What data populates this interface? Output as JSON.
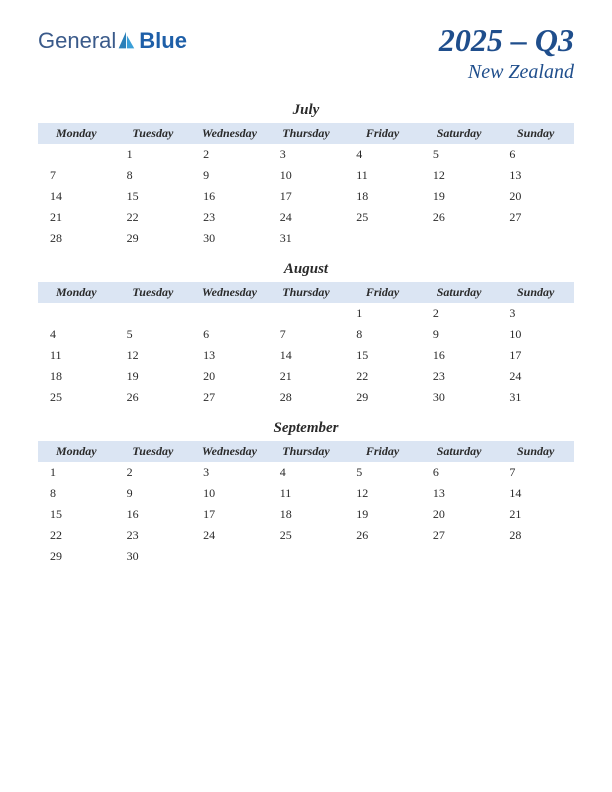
{
  "logo": {
    "text1": "General",
    "text2": "Blue",
    "color_general": "#3a5a8a",
    "color_blue": "#1e5fa8",
    "icon_color": "#2a7fb8"
  },
  "title": {
    "quarter": "2025 – Q3",
    "location": "New Zealand",
    "color": "#1f4e8c"
  },
  "day_headers": [
    "Monday",
    "Tuesday",
    "Wednesday",
    "Thursday",
    "Friday",
    "Saturday",
    "Sunday"
  ],
  "header_bg": "#dbe5f3",
  "months": [
    {
      "name": "July",
      "weeks": [
        [
          "",
          "1",
          "2",
          "3",
          "4",
          "5",
          "6"
        ],
        [
          "7",
          "8",
          "9",
          "10",
          "11",
          "12",
          "13"
        ],
        [
          "14",
          "15",
          "16",
          "17",
          "18",
          "19",
          "20"
        ],
        [
          "21",
          "22",
          "23",
          "24",
          "25",
          "26",
          "27"
        ],
        [
          "28",
          "29",
          "30",
          "31",
          "",
          "",
          ""
        ]
      ]
    },
    {
      "name": "August",
      "weeks": [
        [
          "",
          "",
          "",
          "",
          "1",
          "2",
          "3"
        ],
        [
          "4",
          "5",
          "6",
          "7",
          "8",
          "9",
          "10"
        ],
        [
          "11",
          "12",
          "13",
          "14",
          "15",
          "16",
          "17"
        ],
        [
          "18",
          "19",
          "20",
          "21",
          "22",
          "23",
          "24"
        ],
        [
          "25",
          "26",
          "27",
          "28",
          "29",
          "30",
          "31"
        ]
      ]
    },
    {
      "name": "September",
      "weeks": [
        [
          "1",
          "2",
          "3",
          "4",
          "5",
          "6",
          "7"
        ],
        [
          "8",
          "9",
          "10",
          "11",
          "12",
          "13",
          "14"
        ],
        [
          "15",
          "16",
          "17",
          "18",
          "19",
          "20",
          "21"
        ],
        [
          "22",
          "23",
          "24",
          "25",
          "26",
          "27",
          "28"
        ],
        [
          "29",
          "30",
          "",
          "",
          "",
          "",
          ""
        ]
      ]
    }
  ]
}
